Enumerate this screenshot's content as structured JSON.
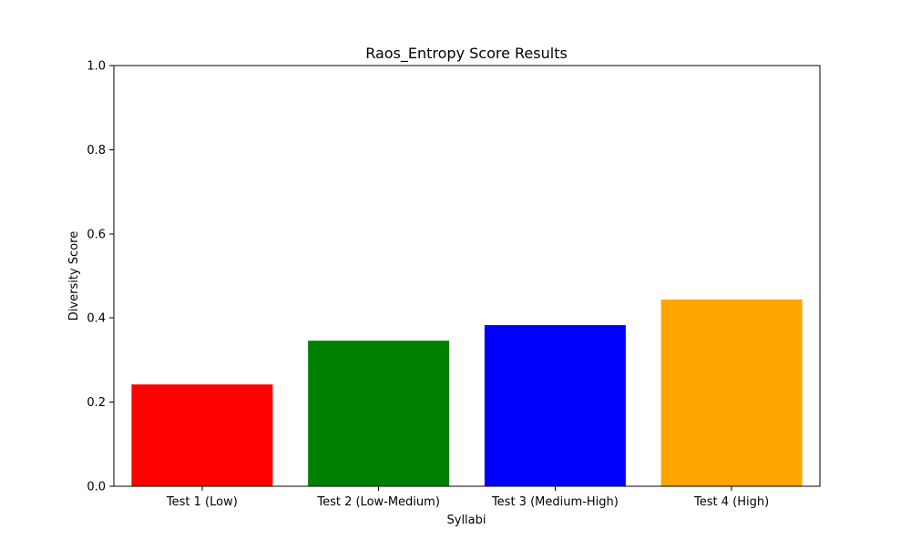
{
  "chart_data": {
    "type": "bar",
    "title": "Raos_Entropy Score Results",
    "xlabel": "Syllabi",
    "ylabel": "Diversity Score",
    "categories": [
      "Test 1 (Low)",
      "Test 2 (Low-Medium)",
      "Test 3 (Medium-High)",
      "Test 4 (High)"
    ],
    "values": [
      0.242,
      0.346,
      0.383,
      0.444
    ],
    "colors": [
      "#ff0000",
      "#008000",
      "#0000ff",
      "#ffa500"
    ],
    "ylim": [
      0,
      1.0
    ],
    "yticks": [
      "0.0",
      "0.2",
      "0.4",
      "0.6",
      "0.8",
      "1.0"
    ],
    "grid": false,
    "legend": "none"
  }
}
